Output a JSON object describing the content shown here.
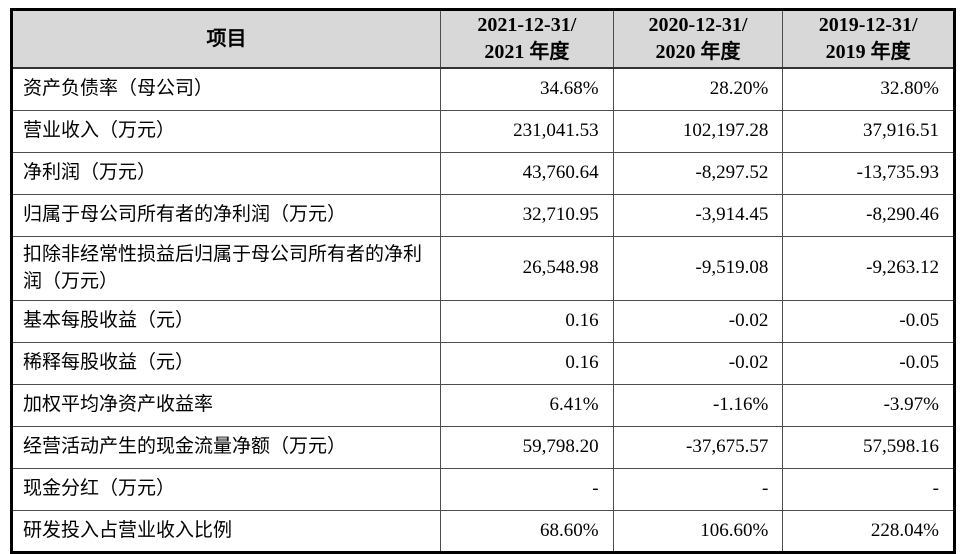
{
  "table": {
    "header": {
      "item_label": "项目",
      "periods": [
        "2021-12-31/\n2021 年度",
        "2020-12-31/\n2020 年度",
        "2019-12-31/\n2019 年度"
      ]
    },
    "rows": [
      {
        "label": "资产负债率（母公司）",
        "values": [
          "34.68%",
          "28.20%",
          "32.80%"
        ]
      },
      {
        "label": "营业收入（万元）",
        "values": [
          "231,041.53",
          "102,197.28",
          "37,916.51"
        ]
      },
      {
        "label": "净利润（万元）",
        "values": [
          "43,760.64",
          "-8,297.52",
          "-13,735.93"
        ]
      },
      {
        "label": "归属于母公司所有者的净利润（万元）",
        "values": [
          "32,710.95",
          "-3,914.45",
          "-8,290.46"
        ]
      },
      {
        "label": "扣除非经常性损益后归属于母公司所有者的净利润（万元）",
        "values": [
          "26,548.98",
          "-9,519.08",
          "-9,263.12"
        ]
      },
      {
        "label": "基本每股收益（元）",
        "values": [
          "0.16",
          "-0.02",
          "-0.05"
        ]
      },
      {
        "label": "稀释每股收益（元）",
        "values": [
          "0.16",
          "-0.02",
          "-0.05"
        ]
      },
      {
        "label": "加权平均净资产收益率",
        "values": [
          "6.41%",
          "-1.16%",
          "-3.97%"
        ]
      },
      {
        "label": "经营活动产生的现金流量净额（万元）",
        "values": [
          "59,798.20",
          "-37,675.57",
          "57,598.16"
        ]
      },
      {
        "label": "现金分红（万元）",
        "values": [
          "-",
          "-",
          "-"
        ]
      },
      {
        "label": "研发投入占营业收入比例",
        "values": [
          "68.60%",
          "106.60%",
          "228.04%"
        ]
      }
    ],
    "colors": {
      "header_bg": "#d8d8d8",
      "outer_border": "#000000",
      "inner_border": "#4d4d4d",
      "text": "#000000"
    }
  }
}
